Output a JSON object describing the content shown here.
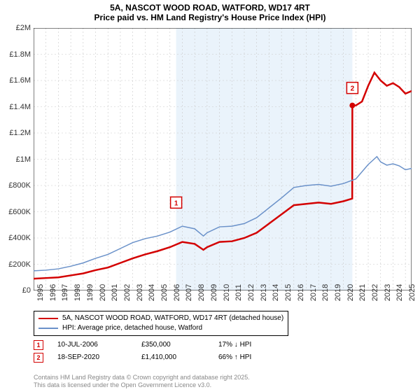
{
  "title": "5A, NASCOT WOOD ROAD, WATFORD, WD17 4RT",
  "subtitle": "Price paid vs. HM Land Registry's House Price Index (HPI)",
  "chart": {
    "type": "line",
    "background_color": "#ffffff",
    "shaded_region_color": "#eaf3fb",
    "shaded_x_start": 2006.5,
    "shaded_x_end": 2020.72,
    "grid_color": "#c8c8c8",
    "grid_dash": "2,3",
    "axis_color": "#000000",
    "xlim": [
      1995,
      2025.5
    ],
    "ylim": [
      0,
      2000000
    ],
    "ytick_step": 200000,
    "ytick_labels": [
      "£0",
      "£200K",
      "£400K",
      "£600K",
      "£800K",
      "£1M",
      "£1.2M",
      "£1.4M",
      "£1.6M",
      "£1.8M",
      "£2M"
    ],
    "xticks": [
      1995,
      1996,
      1997,
      1998,
      1999,
      2000,
      2001,
      2002,
      2003,
      2004,
      2005,
      2006,
      2007,
      2008,
      2009,
      2010,
      2011,
      2012,
      2013,
      2014,
      2015,
      2016,
      2017,
      2018,
      2019,
      2020,
      2021,
      2022,
      2023,
      2024,
      2025
    ],
    "series": [
      {
        "name": "5A, NASCOT WOOD ROAD, WATFORD, WD17 4RT (detached house)",
        "color": "#d30000",
        "line_width": 2.5,
        "points": [
          [
            1995,
            90000
          ],
          [
            1996,
            95000
          ],
          [
            1997,
            100000
          ],
          [
            1998,
            115000
          ],
          [
            1999,
            130000
          ],
          [
            2000,
            155000
          ],
          [
            2001,
            175000
          ],
          [
            2002,
            210000
          ],
          [
            2003,
            245000
          ],
          [
            2004,
            275000
          ],
          [
            2005,
            300000
          ],
          [
            2006,
            330000
          ],
          [
            2006.5,
            350000
          ],
          [
            2007,
            370000
          ],
          [
            2008,
            355000
          ],
          [
            2008.7,
            310000
          ],
          [
            2009,
            330000
          ],
          [
            2010,
            370000
          ],
          [
            2011,
            375000
          ],
          [
            2012,
            400000
          ],
          [
            2013,
            440000
          ],
          [
            2014,
            510000
          ],
          [
            2015,
            580000
          ],
          [
            2016,
            650000
          ],
          [
            2017,
            660000
          ],
          [
            2018,
            670000
          ],
          [
            2019,
            660000
          ],
          [
            2020,
            680000
          ],
          [
            2020.71,
            700000
          ],
          [
            2020.72,
            1410000
          ],
          [
            2021,
            1410000
          ],
          [
            2021.5,
            1440000
          ],
          [
            2022,
            1560000
          ],
          [
            2022.5,
            1660000
          ],
          [
            2023,
            1600000
          ],
          [
            2023.5,
            1560000
          ],
          [
            2024,
            1580000
          ],
          [
            2024.5,
            1550000
          ],
          [
            2025,
            1500000
          ],
          [
            2025.5,
            1520000
          ]
        ]
      },
      {
        "name": "HPI: Average price, detached house, Watford",
        "color": "#6a91c9",
        "line_width": 1.5,
        "points": [
          [
            1995,
            150000
          ],
          [
            1996,
            155000
          ],
          [
            1997,
            165000
          ],
          [
            1998,
            185000
          ],
          [
            1999,
            210000
          ],
          [
            2000,
            245000
          ],
          [
            2001,
            275000
          ],
          [
            2002,
            320000
          ],
          [
            2003,
            365000
          ],
          [
            2004,
            395000
          ],
          [
            2005,
            415000
          ],
          [
            2006,
            445000
          ],
          [
            2007,
            490000
          ],
          [
            2008,
            470000
          ],
          [
            2008.7,
            415000
          ],
          [
            2009,
            440000
          ],
          [
            2010,
            485000
          ],
          [
            2011,
            490000
          ],
          [
            2012,
            510000
          ],
          [
            2013,
            555000
          ],
          [
            2014,
            630000
          ],
          [
            2015,
            705000
          ],
          [
            2016,
            785000
          ],
          [
            2017,
            800000
          ],
          [
            2018,
            808000
          ],
          [
            2019,
            795000
          ],
          [
            2020,
            815000
          ],
          [
            2021,
            850000
          ],
          [
            2022,
            960000
          ],
          [
            2022.7,
            1020000
          ],
          [
            2023,
            980000
          ],
          [
            2023.5,
            955000
          ],
          [
            2024,
            965000
          ],
          [
            2024.5,
            950000
          ],
          [
            2025,
            920000
          ],
          [
            2025.5,
            930000
          ]
        ]
      }
    ],
    "markers": [
      {
        "label": "1",
        "x": 2006.5,
        "y": 350000,
        "box_color": "#d30000",
        "show_dot": false,
        "label_y_offset": -60
      },
      {
        "label": "2",
        "x": 2020.72,
        "y": 1410000,
        "box_color": "#d30000",
        "show_dot": true,
        "label_y_offset": -25
      }
    ]
  },
  "legend": {
    "items": [
      {
        "color": "#d30000",
        "width": 2.5,
        "label": "5A, NASCOT WOOD ROAD, WATFORD, WD17 4RT (detached house)"
      },
      {
        "color": "#6a91c9",
        "width": 1.5,
        "label": "HPI: Average price, detached house, Watford"
      }
    ]
  },
  "data_points": [
    {
      "marker": "1",
      "marker_color": "#d30000",
      "date": "10-JUL-2006",
      "price": "£350,000",
      "delta": "17% ↓ HPI"
    },
    {
      "marker": "2",
      "marker_color": "#d30000",
      "date": "18-SEP-2020",
      "price": "£1,410,000",
      "delta": "66% ↑ HPI"
    }
  ],
  "footer_line1": "Contains HM Land Registry data © Crown copyright and database right 2025.",
  "footer_line2": "This data is licensed under the Open Government Licence v3.0."
}
